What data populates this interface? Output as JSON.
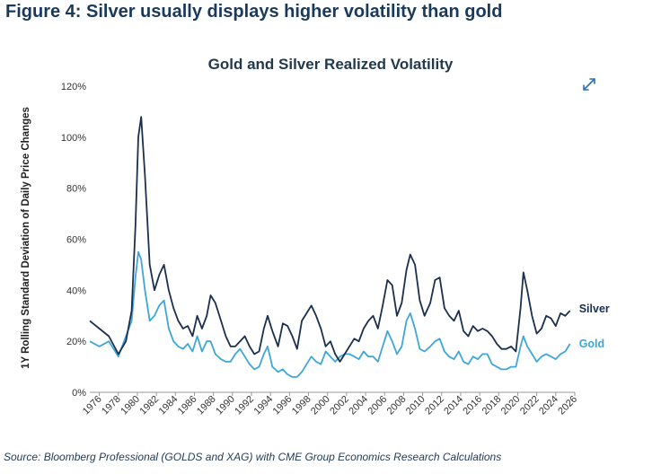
{
  "figure_title": "Figure 4: Silver usually displays higher volatility than gold",
  "source": "Source: Bloomberg Professional (GOLDS and XAG) with CME Group Economics Research Calculations",
  "icons": {
    "expand": "expand-icon"
  },
  "colors": {
    "silver": "#1b2f4e",
    "gold": "#3fa6d8",
    "title": "#1a3a5c"
  },
  "chart_data": {
    "type": "line",
    "title": "Gold and Silver Realized Volatility",
    "ylabel": "1Y Rolling Standard Deviation of Daily Price Changes",
    "xlabel": "",
    "xlim": [
      1975,
      2026
    ],
    "ylim": [
      0,
      120
    ],
    "grid": false,
    "legend": "end-of-line labels",
    "x_ticks": [
      "1976",
      "1978",
      "1980",
      "1982",
      "1984",
      "1986",
      "1988",
      "1990",
      "1992",
      "1994",
      "1996",
      "1998",
      "2000",
      "2002",
      "2004",
      "2006",
      "2008",
      "2010",
      "2012",
      "2014",
      "2016",
      "2018",
      "2020",
      "2022",
      "2024",
      "2026"
    ],
    "y_ticks": [
      "0%",
      "20%",
      "40%",
      "60%",
      "80%",
      "100%",
      "120%"
    ],
    "series": [
      {
        "name": "Silver",
        "x": [
          1975,
          1976,
          1977,
          1978,
          1978.8,
          1979.4,
          1979.8,
          1980.1,
          1980.4,
          1980.8,
          1981.3,
          1981.8,
          1982.3,
          1982.8,
          1983.3,
          1983.8,
          1984.3,
          1984.8,
          1985.3,
          1985.8,
          1986.3,
          1986.8,
          1987.3,
          1987.7,
          1988.2,
          1988.8,
          1989.3,
          1989.8,
          1990.3,
          1990.8,
          1991.3,
          1991.8,
          1992.3,
          1992.8,
          1993.3,
          1993.7,
          1994.2,
          1994.8,
          1995.3,
          1995.8,
          1996.3,
          1996.8,
          1997.3,
          1997.8,
          1998.3,
          1998.8,
          1999.3,
          1999.8,
          2000.3,
          2000.8,
          2001.3,
          2001.8,
          2002.3,
          2002.8,
          2003.3,
          2003.8,
          2004.3,
          2004.8,
          2005.3,
          2005.8,
          2006.3,
          2006.8,
          2007.3,
          2007.8,
          2008.3,
          2008.7,
          2009.2,
          2009.7,
          2010.2,
          2010.8,
          2011.3,
          2011.8,
          2012.3,
          2012.8,
          2013.3,
          2013.8,
          2014.3,
          2014.8,
          2015.3,
          2015.8,
          2016.3,
          2016.8,
          2017.3,
          2017.8,
          2018.3,
          2018.8,
          2019.3,
          2019.8,
          2020.3,
          2020.6,
          2021.0,
          2021.5,
          2022.0,
          2022.5,
          2023.0,
          2023.5,
          2024.0,
          2024.5,
          2025.0,
          2025.5
        ],
        "values": [
          28,
          25,
          22,
          15,
          20,
          32,
          65,
          100,
          108,
          85,
          50,
          40,
          46,
          50,
          40,
          33,
          28,
          25,
          26,
          22,
          30,
          25,
          30,
          38,
          35,
          28,
          22,
          18,
          18,
          20,
          22,
          18,
          15,
          16,
          25,
          30,
          24,
          18,
          27,
          26,
          22,
          17,
          28,
          31,
          34,
          30,
          25,
          18,
          20,
          15,
          12,
          15,
          18,
          21,
          20,
          25,
          28,
          30,
          25,
          34,
          44,
          42,
          30,
          35,
          48,
          54,
          50,
          36,
          30,
          35,
          44,
          45,
          33,
          30,
          28,
          32,
          24,
          22,
          26,
          24,
          25,
          24,
          22,
          19,
          17,
          17,
          18,
          16,
          33,
          47,
          40,
          30,
          23,
          25,
          30,
          29,
          26,
          31,
          30,
          32
        ]
      },
      {
        "name": "Gold",
        "x": [
          1975,
          1976,
          1977,
          1978,
          1978.8,
          1979.4,
          1979.8,
          1980.1,
          1980.4,
          1980.8,
          1981.3,
          1981.8,
          1982.3,
          1982.8,
          1983.3,
          1983.8,
          1984.3,
          1984.8,
          1985.3,
          1985.8,
          1986.3,
          1986.8,
          1987.3,
          1987.7,
          1988.2,
          1988.8,
          1989.3,
          1989.8,
          1990.3,
          1990.8,
          1991.3,
          1991.8,
          1992.3,
          1992.8,
          1993.3,
          1993.7,
          1994.2,
          1994.8,
          1995.3,
          1995.8,
          1996.3,
          1996.8,
          1997.3,
          1997.8,
          1998.3,
          1998.8,
          1999.3,
          1999.8,
          2000.3,
          2000.8,
          2001.3,
          2001.8,
          2002.3,
          2002.8,
          2003.3,
          2003.8,
          2004.3,
          2004.8,
          2005.3,
          2005.8,
          2006.3,
          2006.8,
          2007.3,
          2007.8,
          2008.3,
          2008.7,
          2009.2,
          2009.7,
          2010.2,
          2010.8,
          2011.3,
          2011.8,
          2012.3,
          2012.8,
          2013.3,
          2013.8,
          2014.3,
          2014.8,
          2015.3,
          2015.8,
          2016.3,
          2016.8,
          2017.3,
          2017.8,
          2018.3,
          2018.8,
          2019.3,
          2019.8,
          2020.3,
          2020.6,
          2021.0,
          2021.5,
          2022.0,
          2022.5,
          2023.0,
          2023.5,
          2024.0,
          2024.5,
          2025.0,
          2025.5
        ],
        "values": [
          20,
          18,
          20,
          14,
          22,
          28,
          45,
          55,
          52,
          40,
          28,
          30,
          34,
          36,
          25,
          20,
          18,
          17,
          19,
          16,
          22,
          16,
          20,
          20,
          15,
          13,
          12,
          12,
          15,
          17,
          14,
          11,
          9,
          10,
          15,
          18,
          10,
          8,
          9,
          7,
          6,
          6,
          8,
          11,
          14,
          12,
          11,
          16,
          14,
          12,
          14,
          15,
          15,
          14,
          13,
          16,
          14,
          14,
          12,
          18,
          24,
          20,
          15,
          18,
          28,
          31,
          25,
          17,
          16,
          18,
          20,
          21,
          16,
          14,
          13,
          16,
          12,
          11,
          14,
          13,
          15,
          15,
          11,
          10,
          9,
          9,
          10,
          10,
          18,
          22,
          18,
          15,
          12,
          14,
          15,
          14,
          13,
          15,
          16,
          19
        ]
      }
    ]
  }
}
